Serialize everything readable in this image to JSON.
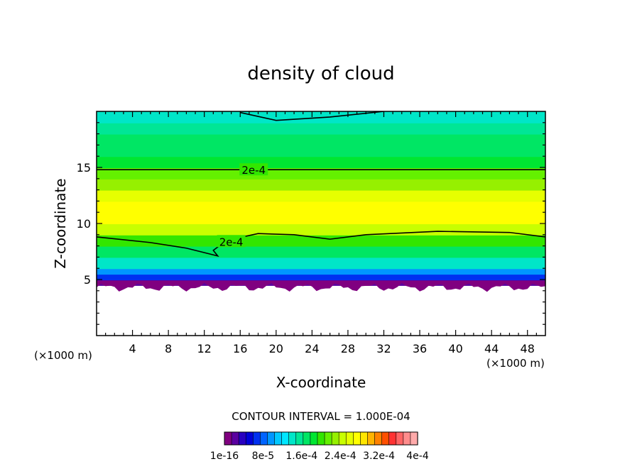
{
  "chart_data": {
    "type": "heatmap",
    "title": "density of cloud",
    "xlabel": "X-coordinate",
    "ylabel": "Z-coordinate",
    "x_unit_left": "(×1000 m)",
    "x_unit_right": "(×1000 m)",
    "xlim": [
      0,
      50
    ],
    "ylim": [
      0,
      20
    ],
    "x_ticks": [
      4,
      8,
      12,
      16,
      20,
      24,
      28,
      32,
      36,
      40,
      44,
      48
    ],
    "y_ticks": [
      5,
      10,
      15
    ],
    "contour_interval_text": "CONTOUR INTERVAL = 1.000E-04",
    "contour_labels": [
      {
        "text": "2e-4",
        "x": 17.5,
        "y": 14.8
      },
      {
        "text": "2e-4",
        "x": 15.0,
        "y": 8.4
      }
    ],
    "field_profile": {
      "z": [
        4.5,
        5.0,
        5.5,
        6.0,
        7.0,
        8.0,
        9.0,
        10.0,
        11.0,
        12.0,
        13.0,
        14.0,
        15.0,
        16.0,
        17.0,
        18.0,
        19.0,
        20.0
      ],
      "density": [
        1e-05,
        4e-05,
        8e-05,
        0.00012,
        0.00016,
        0.00019,
        0.00022,
        0.00026,
        0.00028,
        0.00027,
        0.00024,
        0.000215,
        0.0002,
        0.000185,
        0.00017,
        0.00016,
        0.00015,
        0.000145
      ]
    },
    "cloud_base_z": 4.3,
    "colorbar": {
      "tick_labels": [
        "1e-16",
        "8e-5",
        "1.6e-4",
        "2.4e-4",
        "3.2e-4",
        "4e-4"
      ],
      "colors": [
        "#800080",
        "#5a00a0",
        "#2800c0",
        "#0000d8",
        "#0030f0",
        "#0064ff",
        "#0096ff",
        "#00c8ff",
        "#00e6ff",
        "#00e6c8",
        "#00e696",
        "#00e664",
        "#00e632",
        "#32e600",
        "#64f000",
        "#96f000",
        "#c8ff00",
        "#e6ff00",
        "#ffff00",
        "#ffe600",
        "#ffb400",
        "#ff8200",
        "#ff5000",
        "#ff3232",
        "#ff6464",
        "#ff8c8c",
        "#ffaaaa"
      ]
    }
  }
}
